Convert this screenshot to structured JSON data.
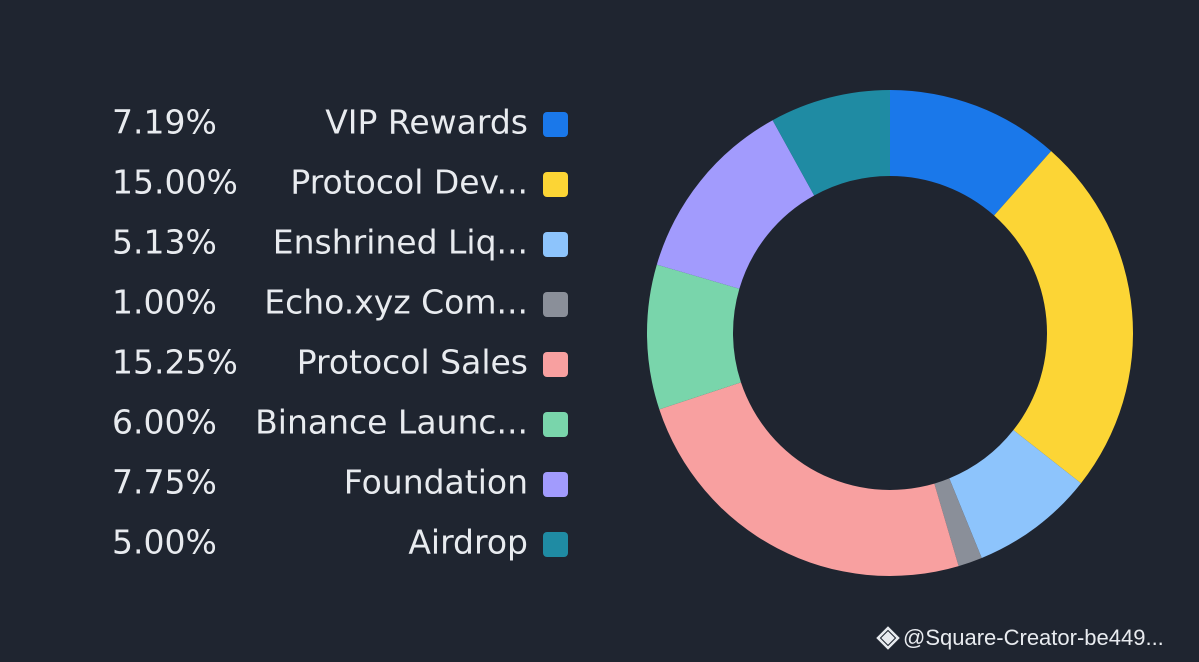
{
  "chart_data": {
    "type": "pie",
    "donut": true,
    "categories": [
      "VIP Rewards",
      "Protocol Dev...",
      "Enshrined Liq...",
      "Echo.xyz Com...",
      "Protocol Sales",
      "Binance Launc...",
      "Foundation",
      "Airdrop"
    ],
    "values": [
      7.19,
      15.0,
      5.13,
      1.0,
      15.25,
      6.0,
      7.75,
      5.0
    ],
    "value_labels": [
      "7.19%",
      "15.00%",
      "5.13%",
      "1.00%",
      "15.25%",
      "6.00%",
      "7.75%",
      "5.00%"
    ],
    "colors": [
      "#1a78ea",
      "#fcd535",
      "#8dc4fc",
      "#8a8f99",
      "#f8a0a0",
      "#79d5ab",
      "#a29bfd",
      "#1f8ba3"
    ]
  },
  "watermark": "@Square-Creator-be449..."
}
